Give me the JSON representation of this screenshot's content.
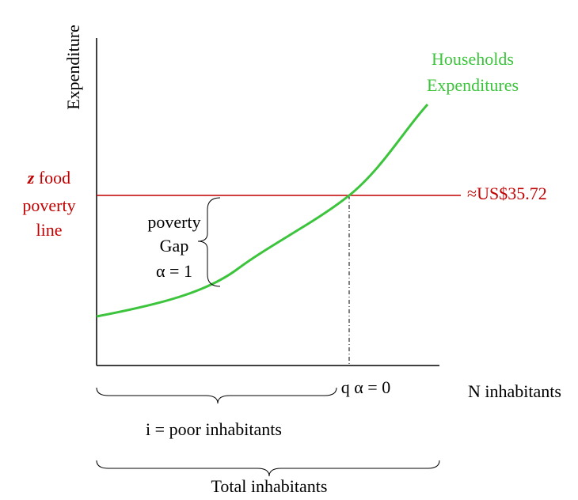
{
  "y_axis_label": "Expenditure",
  "x_axis_label": "N inhabitants",
  "poverty_line": {
    "symbol": "z",
    "lines": [
      " food",
      "poverty",
      "line"
    ],
    "value_label": "≈US$35.72"
  },
  "curve_label": [
    "Households",
    "Expenditures"
  ],
  "gap_label": [
    "poverty",
    "Gap",
    "α = 1"
  ],
  "q_label": "q α = 0",
  "poor_label": "i = poor inhabitants",
  "total_label": "Total inhabitants"
}
